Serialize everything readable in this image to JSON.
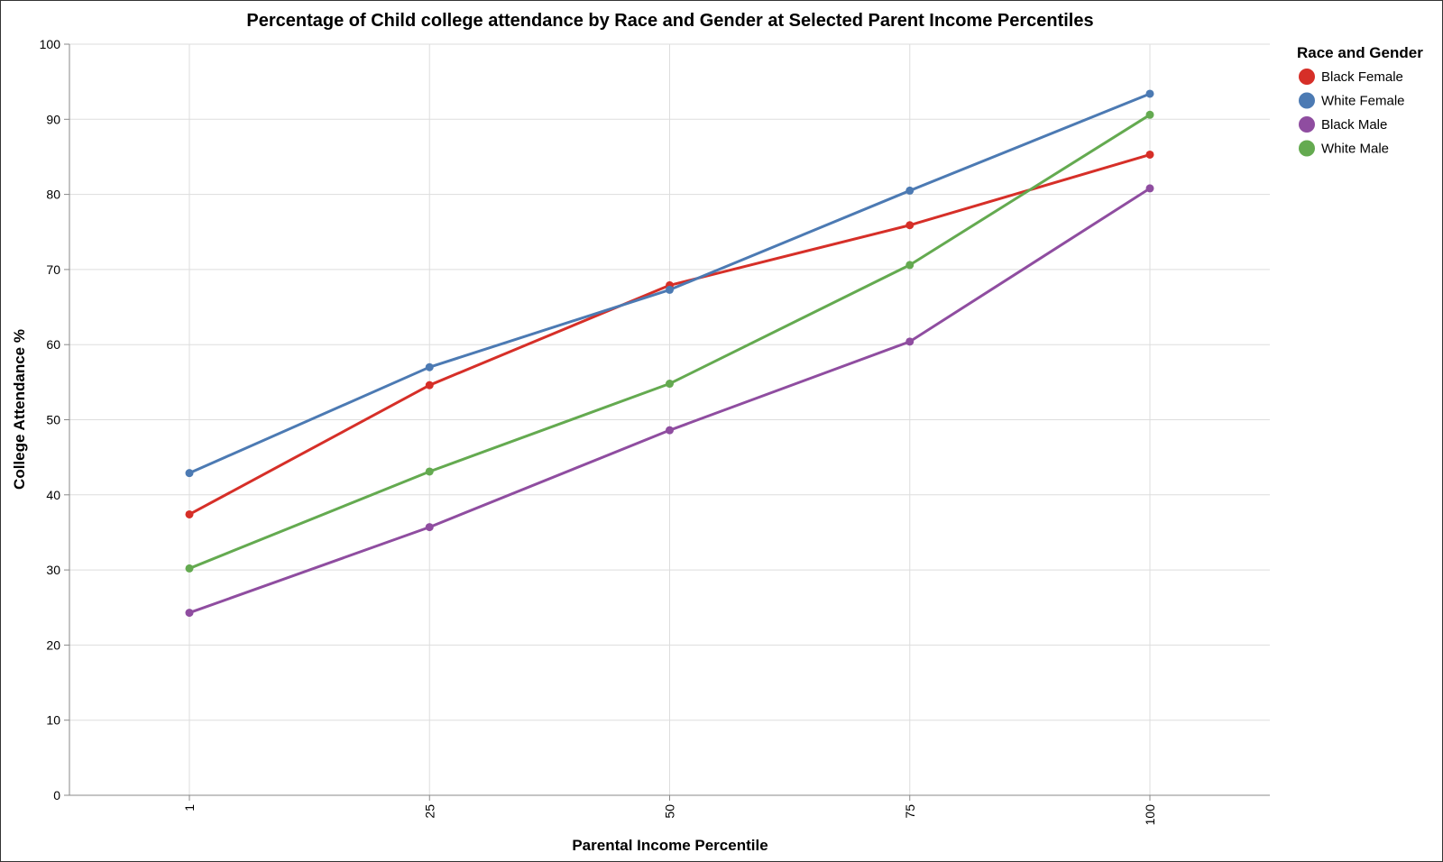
{
  "chart_data": {
    "type": "line",
    "title": "Percentage of Child college attendance by Race and Gender at Selected Parent Income Percentiles",
    "xlabel": "Parental Income Percentile",
    "ylabel": "College Attendance %",
    "x": [
      1,
      25,
      50,
      75,
      100
    ],
    "x_tick_labels": [
      "1",
      "25",
      "50",
      "75",
      "100"
    ],
    "ylim": [
      0,
      100
    ],
    "y_ticks": [
      0,
      10,
      20,
      30,
      40,
      50,
      60,
      70,
      80,
      90,
      100
    ],
    "grid": true,
    "legend": {
      "title": "Race and Gender",
      "placement": "top-right"
    },
    "series": [
      {
        "name": "Black Female",
        "color": "#d62f28",
        "values": [
          37.4,
          54.6,
          67.9,
          75.9,
          85.3
        ]
      },
      {
        "name": "White Female",
        "color": "#4c7ab3",
        "values": [
          42.9,
          57.0,
          67.3,
          80.5,
          93.4
        ]
      },
      {
        "name": "Black Male",
        "color": "#8f4da0",
        "values": [
          24.3,
          35.7,
          48.6,
          60.4,
          80.8
        ]
      },
      {
        "name": "White Male",
        "color": "#64aa50",
        "values": [
          30.2,
          43.1,
          54.8,
          70.6,
          90.6
        ]
      }
    ]
  }
}
